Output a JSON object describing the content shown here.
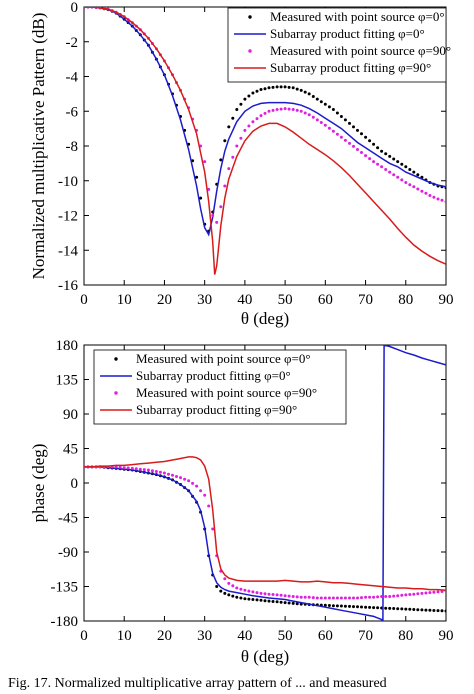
{
  "caption": "Fig. 17.   Normalized multiplicative array pattern of ... and measured",
  "colors": {
    "blue": "#1c1ccd",
    "red": "#d81b1b",
    "magenta": "#e020e0",
    "black": "#000000"
  },
  "chart_data": [
    {
      "type": "line",
      "ylabel": "Normalized multiplicative Pattern (dB)",
      "xlabel": "θ (deg)",
      "xlim": [
        0,
        90
      ],
      "ylim": [
        -16,
        0
      ],
      "xticks": [
        "0",
        "10",
        "20",
        "30",
        "40",
        "50",
        "60",
        "70",
        "80",
        "90"
      ],
      "yticks": [
        "0",
        "-2",
        "-4",
        "-6",
        "-8",
        "-10",
        "-12",
        "-14",
        "-16"
      ],
      "legend_position": "top-right",
      "grid": false,
      "series": [
        {
          "name": "Measured with point source φ=0°",
          "style": "dots",
          "color": "#000000",
          "x": [
            0,
            2,
            4,
            6,
            8,
            10,
            12,
            14,
            16,
            18,
            20,
            22,
            24,
            26,
            28,
            29,
            30,
            31,
            32,
            33,
            34,
            35,
            36,
            38,
            40,
            42,
            44,
            46,
            48,
            50,
            52,
            54,
            56,
            58,
            60,
            62,
            64,
            66,
            68,
            70,
            72,
            74,
            76,
            78,
            80,
            82,
            84,
            86,
            88,
            90
          ],
          "y": [
            0,
            0,
            -0.05,
            -0.15,
            -0.35,
            -0.7,
            -1.1,
            -1.6,
            -2.2,
            -3.0,
            -3.9,
            -5.0,
            -6.3,
            -7.9,
            -9.8,
            -11.0,
            -12.5,
            -12.9,
            -11.8,
            -10.2,
            -8.8,
            -7.7,
            -6.9,
            -5.9,
            -5.3,
            -4.95,
            -4.75,
            -4.65,
            -4.6,
            -4.6,
            -4.65,
            -4.8,
            -5.0,
            -5.3,
            -5.6,
            -5.9,
            -6.3,
            -6.7,
            -7.1,
            -7.5,
            -7.9,
            -8.3,
            -8.6,
            -8.9,
            -9.2,
            -9.5,
            -9.8,
            -10.1,
            -10.3,
            -10.4
          ]
        },
        {
          "name": "Subarray product fitting φ=0°",
          "style": "line",
          "color": "#1c1ccd",
          "x": [
            0,
            2,
            4,
            6,
            8,
            10,
            12,
            14,
            16,
            18,
            20,
            22,
            24,
            26,
            28,
            29,
            30,
            31,
            32,
            33,
            34,
            35,
            36,
            38,
            40,
            42,
            44,
            46,
            48,
            50,
            52,
            54,
            56,
            58,
            60,
            62,
            64,
            66,
            68,
            70,
            72,
            74,
            76,
            78,
            80,
            82,
            84,
            86,
            88,
            90
          ],
          "y": [
            0,
            0,
            -0.05,
            -0.15,
            -0.35,
            -0.7,
            -1.1,
            -1.6,
            -2.2,
            -3.0,
            -3.9,
            -5.1,
            -6.5,
            -8.2,
            -10.3,
            -11.6,
            -12.7,
            -13.1,
            -12.1,
            -10.6,
            -9.3,
            -8.3,
            -7.6,
            -6.6,
            -6.0,
            -5.7,
            -5.55,
            -5.5,
            -5.5,
            -5.5,
            -5.55,
            -5.65,
            -5.85,
            -6.1,
            -6.4,
            -6.7,
            -7.0,
            -7.4,
            -7.8,
            -8.1,
            -8.4,
            -8.7,
            -9.0,
            -9.2,
            -9.5,
            -9.7,
            -9.9,
            -10.1,
            -10.25,
            -10.35
          ]
        },
        {
          "name": "Measured with point source φ=90°",
          "style": "dots",
          "color": "#e020e0",
          "x": [
            0,
            2,
            4,
            6,
            8,
            10,
            12,
            14,
            16,
            18,
            20,
            22,
            24,
            26,
            28,
            30,
            31,
            32,
            33,
            34,
            35,
            36,
            38,
            40,
            42,
            44,
            46,
            48,
            50,
            52,
            54,
            56,
            58,
            60,
            62,
            64,
            66,
            68,
            70,
            72,
            74,
            76,
            78,
            80,
            82,
            84,
            86,
            88,
            90
          ],
          "y": [
            0,
            0,
            -0.05,
            -0.12,
            -0.3,
            -0.55,
            -0.9,
            -1.3,
            -1.8,
            -2.4,
            -3.1,
            -3.9,
            -4.8,
            -5.8,
            -7.1,
            -8.9,
            -10.5,
            -12.0,
            -12.4,
            -11.5,
            -10.3,
            -9.3,
            -8.0,
            -7.1,
            -6.6,
            -6.25,
            -6.0,
            -5.9,
            -5.85,
            -5.9,
            -6.0,
            -6.2,
            -6.5,
            -6.8,
            -7.15,
            -7.5,
            -7.85,
            -8.2,
            -8.55,
            -8.9,
            -9.2,
            -9.5,
            -9.8,
            -10.1,
            -10.35,
            -10.6,
            -10.85,
            -11.05,
            -11.2
          ]
        },
        {
          "name": "Subarray product fitting φ=90°",
          "style": "line",
          "color": "#d81b1b",
          "x": [
            0,
            2,
            4,
            6,
            8,
            10,
            12,
            14,
            16,
            18,
            20,
            22,
            24,
            26,
            28,
            30,
            31,
            32,
            32.5,
            33,
            34,
            35,
            36,
            38,
            40,
            42,
            44,
            46,
            48,
            50,
            52,
            54,
            56,
            58,
            60,
            62,
            64,
            66,
            68,
            70,
            72,
            74,
            76,
            78,
            80,
            82,
            84,
            86,
            88,
            90
          ],
          "y": [
            0,
            0,
            -0.05,
            -0.12,
            -0.3,
            -0.55,
            -0.9,
            -1.3,
            -1.8,
            -2.4,
            -3.1,
            -3.9,
            -4.8,
            -5.9,
            -7.3,
            -9.5,
            -11.2,
            -13.5,
            -15.4,
            -14.9,
            -12.6,
            -11.0,
            -9.9,
            -8.6,
            -7.7,
            -7.15,
            -6.85,
            -6.7,
            -6.7,
            -6.9,
            -7.2,
            -7.55,
            -7.9,
            -8.2,
            -8.5,
            -8.85,
            -9.25,
            -9.7,
            -10.2,
            -10.7,
            -11.2,
            -11.7,
            -12.2,
            -12.75,
            -13.25,
            -13.7,
            -14.05,
            -14.35,
            -14.6,
            -14.8
          ]
        }
      ]
    },
    {
      "type": "line",
      "ylabel": "phase (deg)",
      "xlabel": "θ (deg)",
      "xlim": [
        0,
        90
      ],
      "ylim": [
        -180,
        180
      ],
      "xticks": [
        "0",
        "10",
        "20",
        "30",
        "40",
        "50",
        "60",
        "70",
        "80",
        "90"
      ],
      "yticks": [
        "180",
        "135",
        "90",
        "45",
        "0",
        "-45",
        "-90",
        "-135",
        "-180"
      ],
      "legend_position": "top-left",
      "grid": false,
      "series": [
        {
          "name": "Measured with point source φ=0°",
          "style": "dots",
          "color": "#000000",
          "x": [
            0,
            2,
            4,
            6,
            8,
            10,
            12,
            14,
            16,
            18,
            20,
            22,
            24,
            26,
            28,
            29,
            30,
            31,
            32,
            33,
            34,
            35,
            36,
            38,
            40,
            42,
            44,
            46,
            48,
            50,
            52,
            54,
            56,
            58,
            60,
            62,
            64,
            66,
            68,
            70,
            72,
            74,
            76,
            78,
            80,
            82,
            84,
            86,
            88,
            90
          ],
          "y": [
            21,
            21,
            21,
            20,
            19,
            18,
            17,
            15,
            13,
            11,
            8,
            4,
            -2,
            -10,
            -25,
            -38,
            -60,
            -95,
            -120,
            -135,
            -141,
            -144,
            -146,
            -149,
            -151,
            -152,
            -153,
            -154,
            -155,
            -156,
            -157,
            -158,
            -158.5,
            -159,
            -159.5,
            -160,
            -160.5,
            -161,
            -161.5,
            -162,
            -162.5,
            -163,
            -163.5,
            -164,
            -164.5,
            -165,
            -165.5,
            -166,
            -166.5,
            -167
          ]
        },
        {
          "name": "Subarray product fitting φ=0°",
          "style": "line",
          "color": "#1c1ccd",
          "x": [
            0,
            2,
            4,
            6,
            8,
            10,
            12,
            14,
            16,
            18,
            20,
            22,
            24,
            26,
            28,
            29,
            30,
            31,
            32,
            33,
            34,
            35,
            36,
            38,
            40,
            42,
            44,
            46,
            48,
            50,
            52,
            54,
            56,
            58,
            60,
            62,
            64,
            66,
            68,
            70,
            72,
            73,
            74,
            74.3,
            74.6,
            76,
            78,
            80,
            82,
            84,
            86,
            88,
            90
          ],
          "y": [
            21,
            21,
            21,
            20,
            19,
            18,
            17,
            15,
            13,
            11,
            8,
            4,
            -2,
            -10,
            -24,
            -36,
            -58,
            -93,
            -118,
            -130,
            -136,
            -139,
            -141,
            -143,
            -145,
            -147,
            -148.5,
            -150,
            -151,
            -152,
            -154,
            -156,
            -158,
            -160,
            -162,
            -164,
            -166,
            -168,
            -170,
            -172,
            -174,
            -176,
            -178,
            -180,
            180,
            178,
            174,
            170,
            167,
            163,
            160,
            157,
            154
          ]
        },
        {
          "name": "Measured with point source φ=90°",
          "style": "dots",
          "color": "#e020e0",
          "x": [
            0,
            2,
            4,
            6,
            8,
            10,
            12,
            14,
            16,
            18,
            20,
            22,
            24,
            26,
            28,
            30,
            31,
            32,
            33,
            34,
            35,
            36,
            38,
            40,
            42,
            44,
            46,
            48,
            50,
            52,
            54,
            56,
            58,
            60,
            62,
            64,
            66,
            68,
            70,
            72,
            74,
            76,
            78,
            80,
            82,
            84,
            86,
            88,
            90
          ],
          "y": [
            21,
            21,
            21,
            21,
            21,
            20,
            19,
            18,
            17,
            15,
            13,
            10,
            7,
            3,
            -4,
            -16,
            -30,
            -60,
            -95,
            -115,
            -125,
            -131,
            -137,
            -140,
            -142,
            -144,
            -145,
            -146,
            -147,
            -148,
            -149,
            -149,
            -150,
            -150,
            -150,
            -150,
            -150,
            -150,
            -149,
            -149,
            -148,
            -148,
            -147,
            -146,
            -145,
            -144,
            -143,
            -142,
            -141
          ]
        },
        {
          "name": "Subarray product fitting φ=90°",
          "style": "line",
          "color": "#d81b1b",
          "x": [
            0,
            2,
            4,
            6,
            8,
            10,
            12,
            14,
            16,
            18,
            20,
            22,
            24,
            26,
            27,
            28,
            29,
            30,
            31,
            32,
            33,
            34,
            35,
            36,
            38,
            40,
            42,
            44,
            46,
            48,
            50,
            52,
            54,
            56,
            58,
            60,
            62,
            64,
            66,
            68,
            70,
            72,
            74,
            76,
            78,
            80,
            82,
            84,
            86,
            88,
            90
          ],
          "y": [
            21,
            21,
            22,
            22,
            23,
            23,
            24,
            25,
            26,
            27,
            28,
            30,
            32,
            34,
            34,
            33,
            30,
            22,
            5,
            -35,
            -90,
            -112,
            -120,
            -124,
            -127,
            -128,
            -128,
            -128,
            -128,
            -128,
            -127,
            -128,
            -129,
            -129,
            -128,
            -129,
            -130,
            -130,
            -131,
            -132,
            -133,
            -134,
            -135,
            -136,
            -137,
            -137,
            -138,
            -138,
            -139,
            -139,
            -140
          ]
        }
      ]
    }
  ]
}
